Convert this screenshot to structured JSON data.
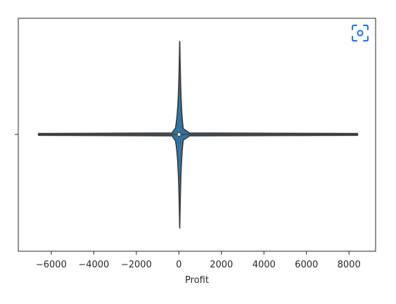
{
  "chart_data": {
    "type": "violin",
    "orientation": "horizontal",
    "title": "",
    "xlabel": "Profit",
    "ylabel": "",
    "xlim": [
      -7550,
      9250
    ],
    "xticks": [
      -6000,
      -4000,
      -2000,
      0,
      2000,
      4000,
      6000,
      8000
    ],
    "xtick_labels": [
      "−6000",
      "−4000",
      "−2000",
      "0",
      "2000",
      "4000",
      "6000",
      "8000"
    ],
    "series": [
      {
        "min": -6600,
        "max": 8400,
        "q1": 2,
        "median": 9,
        "q3": 29,
        "density_peak_x": 40,
        "fill_color": "#3274a1",
        "edge_color": "#3f3f3f"
      }
    ],
    "grid": false,
    "legend": "none"
  },
  "toolbar": {
    "focus_icon": "focus-icon",
    "accent_color": "#1a73e8"
  }
}
